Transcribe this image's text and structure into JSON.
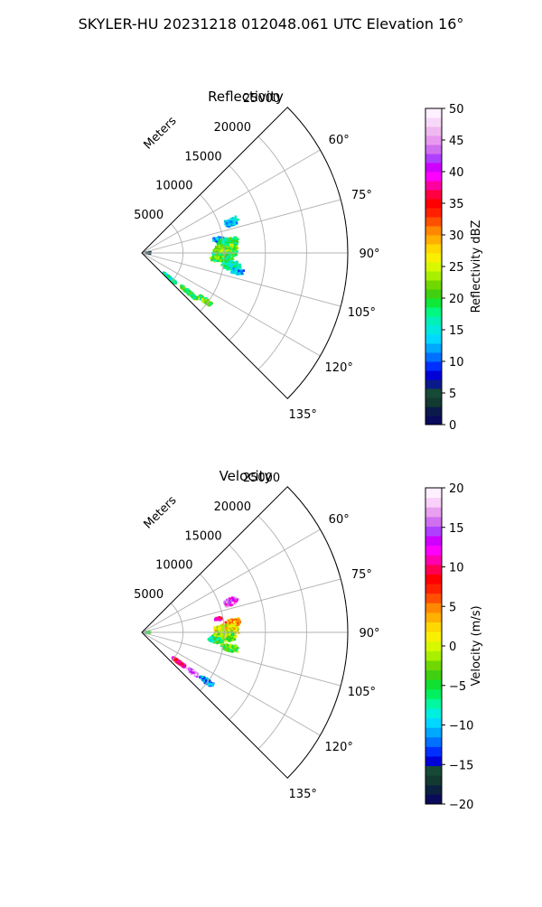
{
  "figure": {
    "suptitle": "SKYLER-HU  20231218  012048.061 UTC Elevation 16°"
  },
  "chart_data": [
    {
      "type": "polar_sector_heatmap",
      "title": "Reflectivity",
      "radial_label": "Meters",
      "radial_ticks": [
        5000,
        10000,
        15000,
        20000,
        25000
      ],
      "radial_tick_labels": [
        "5000",
        "10000",
        "15000",
        "20000",
        "25000"
      ],
      "r_max": 25000,
      "azimuth_range": [
        45,
        135
      ],
      "azimuth_ticks": [
        60,
        75,
        90,
        105,
        120,
        135
      ],
      "azimuth_tick_labels": [
        "60°",
        "75°",
        "90°",
        "105°",
        "120°",
        "135°"
      ],
      "grid": true,
      "colorbar": {
        "label": "Reflectivity dBZ",
        "range": [
          0,
          50
        ],
        "ticks": [
          0,
          5,
          10,
          15,
          20,
          25,
          30,
          35,
          40,
          45,
          50
        ],
        "tick_labels": [
          "0",
          "5",
          "10",
          "15",
          "20",
          "25",
          "30",
          "35",
          "40",
          "45",
          "50"
        ],
        "colors": [
          "#0a0a5a",
          "#0c1a4a",
          "#123a30",
          "#164a36",
          "#0a1a8a",
          "#0000d8",
          "#0030ff",
          "#0070ff",
          "#00a8ff",
          "#00d8ff",
          "#00e8e0",
          "#00f0b8",
          "#00f880",
          "#10e838",
          "#40d010",
          "#70d800",
          "#a8f000",
          "#d8f800",
          "#f8f000",
          "#ffd800",
          "#ffb000",
          "#ff8800",
          "#ff5000",
          "#ff2000",
          "#ff0000",
          "#ff0040",
          "#ff00a0",
          "#ff00ff",
          "#d000ff",
          "#b040ff",
          "#d070f0",
          "#e898f0",
          "#f0b8f0",
          "#f8d8f8",
          "#fff0ff"
        ]
      },
      "echoes": [
        {
          "azimuth": 71,
          "range": 11500,
          "az_width": 4,
          "range_width": 1500,
          "value": 14
        },
        {
          "azimuth": 80,
          "range": 9500,
          "az_width": 3,
          "range_width": 1200,
          "value": 12
        },
        {
          "azimuth": 83,
          "range": 10500,
          "az_width": 5,
          "range_width": 2200,
          "value": 18
        },
        {
          "azimuth": 88,
          "range": 10200,
          "az_width": 6,
          "range_width": 2600,
          "value": 22
        },
        {
          "azimuth": 93,
          "range": 9800,
          "az_width": 6,
          "range_width": 2400,
          "value": 20
        },
        {
          "azimuth": 98,
          "range": 11000,
          "az_width": 5,
          "range_width": 2000,
          "value": 17
        },
        {
          "azimuth": 101,
          "range": 11800,
          "az_width": 3,
          "range_width": 1400,
          "value": 13
        },
        {
          "azimuth": 132,
          "range": 4500,
          "az_width": 3,
          "range_width": 1800,
          "value": 16
        },
        {
          "azimuth": 130,
          "range": 7500,
          "az_width": 3,
          "range_width": 2200,
          "value": 19
        },
        {
          "azimuth": 127,
          "range": 9600,
          "az_width": 3,
          "range_width": 1800,
          "value": 21
        },
        {
          "azimuth": 88,
          "range": 700,
          "az_width": 10,
          "range_width": 600,
          "value": 3
        }
      ]
    },
    {
      "type": "polar_sector_heatmap",
      "title": "Velocity",
      "radial_label": "Meters",
      "radial_ticks": [
        5000,
        10000,
        15000,
        20000,
        25000
      ],
      "radial_tick_labels": [
        "5000",
        "10000",
        "15000",
        "20000",
        "25000"
      ],
      "r_max": 25000,
      "azimuth_range": [
        45,
        135
      ],
      "azimuth_ticks": [
        60,
        75,
        90,
        105,
        120,
        135
      ],
      "azimuth_tick_labels": [
        "60°",
        "75°",
        "90°",
        "105°",
        "120°",
        "135°"
      ],
      "grid": true,
      "colorbar": {
        "label": "Velocity (m/s)",
        "range": [
          -20,
          20
        ],
        "ticks": [
          -20,
          -15,
          -10,
          -5,
          0,
          5,
          10,
          15,
          20
        ],
        "tick_labels": [
          "−20",
          "−15",
          "−10",
          "−5",
          "0",
          "5",
          "10",
          "15",
          "20"
        ],
        "colors": [
          "#0a0a5a",
          "#0c2040",
          "#123a30",
          "#164a36",
          "#0000d8",
          "#0030ff",
          "#0070ff",
          "#00a8ff",
          "#00d8ff",
          "#00f0e0",
          "#00f8a0",
          "#00f060",
          "#10e030",
          "#40d010",
          "#70d800",
          "#a8f000",
          "#d8f800",
          "#f8f000",
          "#ffd800",
          "#ffb000",
          "#ff8800",
          "#ff5000",
          "#ff2000",
          "#ff0000",
          "#ff0050",
          "#ff00b0",
          "#ff00ff",
          "#d000ff",
          "#b040ff",
          "#d070f0",
          "#e8a0f0",
          "#f8d0f8",
          "#fff0ff"
        ]
      },
      "echoes": [
        {
          "azimuth": 71,
          "range": 11500,
          "az_width": 4,
          "range_width": 1500,
          "value": 14
        },
        {
          "azimuth": 80,
          "range": 9500,
          "az_width": 2,
          "range_width": 800,
          "value": 11
        },
        {
          "azimuth": 84,
          "range": 11200,
          "az_width": 4,
          "range_width": 1600,
          "value": 4
        },
        {
          "azimuth": 88,
          "range": 10300,
          "az_width": 6,
          "range_width": 2600,
          "value": 1
        },
        {
          "azimuth": 93,
          "range": 10000,
          "az_width": 6,
          "range_width": 2400,
          "value": -2
        },
        {
          "azimuth": 96,
          "range": 9000,
          "az_width": 4,
          "range_width": 1600,
          "value": -6
        },
        {
          "azimuth": 100,
          "range": 10800,
          "az_width": 4,
          "range_width": 1800,
          "value": -4
        },
        {
          "azimuth": 129,
          "range": 5800,
          "az_width": 3,
          "range_width": 1800,
          "value": 10
        },
        {
          "azimuth": 128,
          "range": 7800,
          "az_width": 3,
          "range_width": 1600,
          "value": 16
        },
        {
          "azimuth": 127,
          "range": 9800,
          "az_width": 3,
          "range_width": 1800,
          "value": -11
        },
        {
          "azimuth": 90,
          "range": 700,
          "az_width": 10,
          "range_width": 600,
          "value": -4
        }
      ]
    }
  ]
}
